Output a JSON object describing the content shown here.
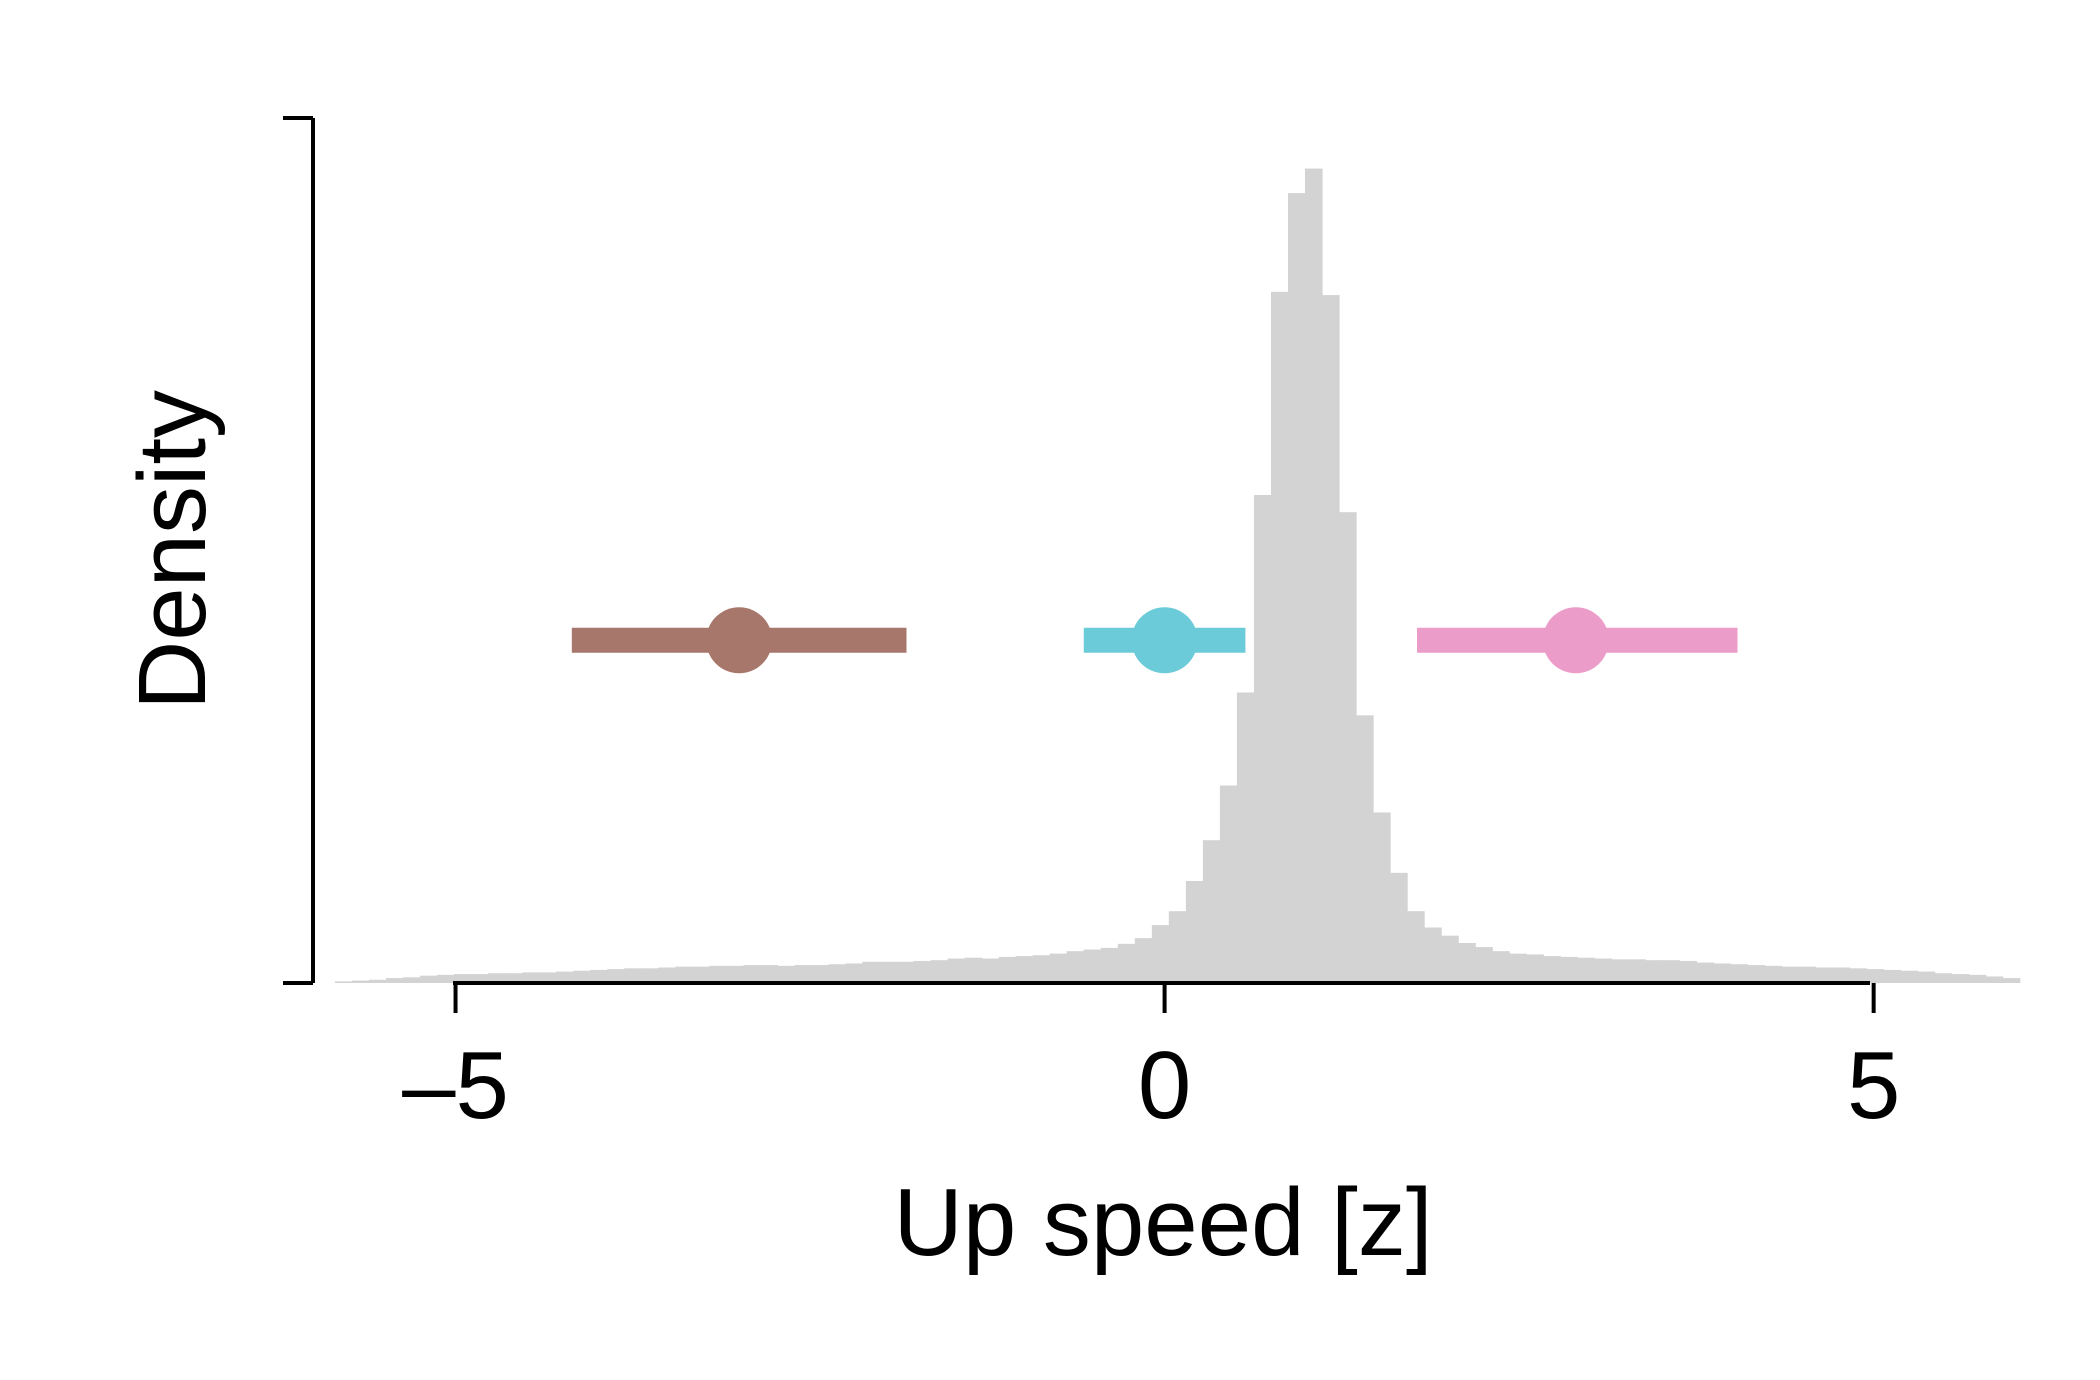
{
  "chart_data": {
    "type": "histogram",
    "xlabel": "Up speed [z]",
    "ylabel": "Density",
    "xlim": [
      -5.85,
      5.75
    ],
    "ylim": [
      0,
      1.06
    ],
    "x_ticks": [
      -5,
      0,
      5
    ],
    "x_tick_labels": [
      "–5",
      "0",
      "5"
    ],
    "y_ticks_shown_without_labels": [
      0,
      1.06
    ],
    "grid": false,
    "legend": "none",
    "histogram": {
      "color": "#d3d3d3",
      "bin_width": 0.12,
      "bin_edges_start": -5.85,
      "values": [
        0.002,
        0.003,
        0.004,
        0.006,
        0.007,
        0.009,
        0.01,
        0.011,
        0.011,
        0.012,
        0.012,
        0.013,
        0.013,
        0.014,
        0.015,
        0.016,
        0.017,
        0.018,
        0.018,
        0.019,
        0.02,
        0.02,
        0.021,
        0.021,
        0.022,
        0.022,
        0.021,
        0.022,
        0.022,
        0.023,
        0.024,
        0.026,
        0.026,
        0.026,
        0.027,
        0.028,
        0.03,
        0.031,
        0.03,
        0.032,
        0.033,
        0.034,
        0.036,
        0.039,
        0.041,
        0.043,
        0.048,
        0.055,
        0.071,
        0.088,
        0.125,
        0.175,
        0.242,
        0.356,
        0.598,
        0.847,
        0.968,
        0.998,
        0.843,
        0.577,
        0.328,
        0.209,
        0.135,
        0.088,
        0.068,
        0.058,
        0.049,
        0.044,
        0.039,
        0.036,
        0.035,
        0.033,
        0.032,
        0.031,
        0.03,
        0.029,
        0.029,
        0.028,
        0.028,
        0.027,
        0.025,
        0.024,
        0.023,
        0.022,
        0.021,
        0.02,
        0.02,
        0.019,
        0.019,
        0.018,
        0.017,
        0.016,
        0.015,
        0.014,
        0.012,
        0.011,
        0.01,
        0.008,
        0.006
      ]
    },
    "intervals": [
      {
        "center": -3.0,
        "low": -4.18,
        "high": -1.82,
        "y": 0.42,
        "color": "#a8776b"
      },
      {
        "center": 0.0,
        "low": -0.57,
        "high": 0.57,
        "y": 0.42,
        "color": "#6ccbd8"
      },
      {
        "center": 2.9,
        "low": 1.78,
        "high": 4.04,
        "y": 0.42,
        "color": "#ec9cc9"
      }
    ]
  }
}
